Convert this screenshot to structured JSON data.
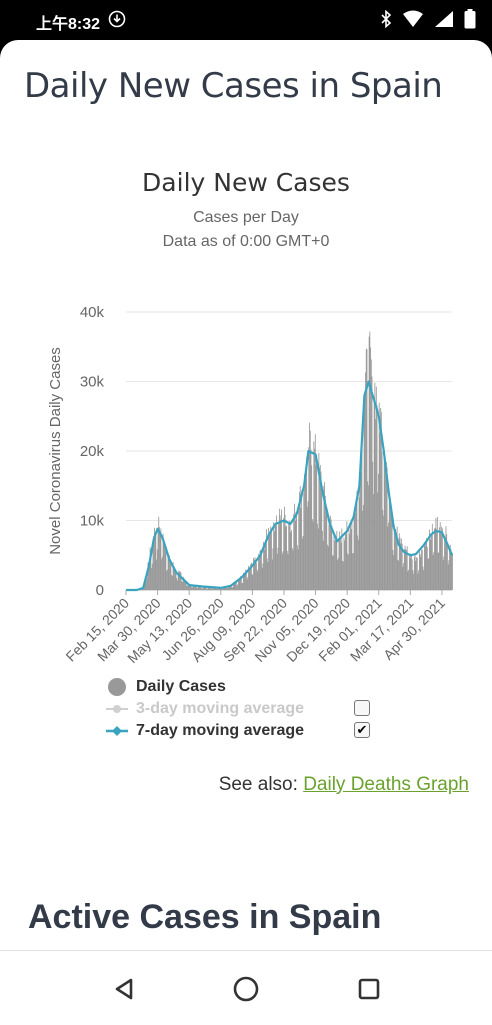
{
  "status": {
    "time": "上午8:32"
  },
  "page": {
    "title": "Daily New Cases in Spain",
    "next_heading": "Active Cases in Spain"
  },
  "chart": {
    "title": "Daily New Cases",
    "subtitle_1": "Cases per Day",
    "subtitle_2": "Data as of 0:00 GMT+0",
    "ylabel": "Novel Coronavirus Daily Cases"
  },
  "chart_data": {
    "type": "bar",
    "title": "Daily New Cases",
    "subtitle": "Cases per Day / Data as of 0:00 GMT+0",
    "ylabel": "Novel Coronavirus Daily Cases",
    "xlabel": "",
    "ylim": [
      0,
      40000
    ],
    "y_ticks": [
      "0",
      "10k",
      "20k",
      "30k",
      "40k"
    ],
    "x_ticks": [
      "Feb 15, 2020",
      "Mar 30, 2020",
      "May 13, 2020",
      "Jun 26, 2020",
      "Aug 09, 2020",
      "Sep 22, 2020",
      "Nov 05, 2020",
      "Dec 19, 2020",
      "Feb 01, 2021",
      "Mar 17, 2021",
      "Apr 30, 2021"
    ],
    "grid": true,
    "legend_position": "bottom",
    "series": [
      {
        "name": "Daily Cases",
        "type": "bar",
        "color": "#999999",
        "x": [
          "2020-02-15",
          "2020-03-01",
          "2020-03-10",
          "2020-03-18",
          "2020-03-25",
          "2020-03-30",
          "2020-04-06",
          "2020-04-15",
          "2020-04-25",
          "2020-05-13",
          "2020-06-01",
          "2020-06-26",
          "2020-07-10",
          "2020-07-25",
          "2020-08-09",
          "2020-08-20",
          "2020-09-01",
          "2020-09-10",
          "2020-09-22",
          "2020-10-01",
          "2020-10-10",
          "2020-10-20",
          "2020-10-26",
          "2020-11-05",
          "2020-11-15",
          "2020-11-25",
          "2020-12-05",
          "2020-12-19",
          "2020-12-28",
          "2021-01-05",
          "2021-01-12",
          "2021-01-18",
          "2021-01-22",
          "2021-01-28",
          "2021-02-01",
          "2021-02-08",
          "2021-02-15",
          "2021-02-22",
          "2021-03-01",
          "2021-03-08",
          "2021-03-17",
          "2021-03-25",
          "2021-04-05",
          "2021-04-15",
          "2021-04-22",
          "2021-04-30",
          "2021-05-08",
          "2021-05-14"
        ],
        "values": [
          0,
          0,
          500,
          5000,
          8500,
          10000,
          8000,
          4500,
          3000,
          800,
          400,
          300,
          700,
          2000,
          4000,
          5500,
          9000,
          10500,
          11000,
          10000,
          12500,
          16000,
          22000,
          20000,
          15000,
          10000,
          7500,
          9000,
          11000,
          17000,
          30000,
          34000,
          31000,
          29000,
          27000,
          22000,
          15000,
          10000,
          7500,
          6500,
          5000,
          5000,
          6500,
          8500,
          10000,
          9500,
          7500,
          5000
        ]
      },
      {
        "name": "7-day moving average",
        "type": "line",
        "color": "#3aa3c0",
        "x": [
          "2020-02-15",
          "2020-03-01",
          "2020-03-10",
          "2020-03-18",
          "2020-03-25",
          "2020-03-30",
          "2020-04-06",
          "2020-04-15",
          "2020-04-25",
          "2020-05-13",
          "2020-06-01",
          "2020-06-26",
          "2020-07-10",
          "2020-07-25",
          "2020-08-09",
          "2020-08-20",
          "2020-09-01",
          "2020-09-10",
          "2020-09-22",
          "2020-10-01",
          "2020-10-10",
          "2020-10-20",
          "2020-10-26",
          "2020-11-05",
          "2020-11-15",
          "2020-11-25",
          "2020-12-05",
          "2020-12-19",
          "2020-12-28",
          "2021-01-05",
          "2021-01-12",
          "2021-01-18",
          "2021-01-22",
          "2021-01-28",
          "2021-02-01",
          "2021-02-08",
          "2021-02-15",
          "2021-02-22",
          "2021-03-01",
          "2021-03-08",
          "2021-03-17",
          "2021-03-25",
          "2021-04-05",
          "2021-04-15",
          "2021-04-22",
          "2021-04-30",
          "2021-05-08",
          "2021-05-14"
        ],
        "values": [
          0,
          0,
          300,
          3500,
          7500,
          8800,
          7500,
          4500,
          2500,
          700,
          500,
          300,
          600,
          1800,
          3500,
          5000,
          8000,
          9500,
          10000,
          9500,
          11000,
          15000,
          20000,
          19500,
          14000,
          9500,
          7000,
          8500,
          10500,
          15000,
          28000,
          30000,
          28500,
          26500,
          25000,
          20000,
          14000,
          9000,
          6500,
          5500,
          5000,
          5200,
          6500,
          8000,
          8500,
          8300,
          6500,
          5000
        ]
      },
      {
        "name": "3-day moving average",
        "type": "line",
        "color": "#cccccc",
        "visible": false
      }
    ]
  },
  "legend": {
    "daily": "Daily Cases",
    "three_day": "3-day moving average",
    "seven_day": "7-day moving average",
    "three_day_checked": false,
    "seven_day_checked": true
  },
  "see_also": {
    "prefix": "See also:",
    "link": "Daily Deaths Graph"
  }
}
